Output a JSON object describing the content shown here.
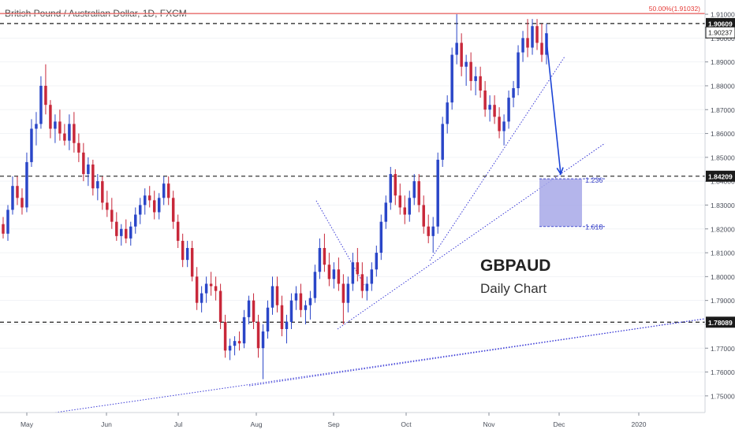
{
  "header": {
    "title": "British Pound / Australian Dollar, 1D, FXCM"
  },
  "annotations": {
    "title": "GBPAUD",
    "subtitle": "Daily Chart",
    "fib_top_label": "50.00%(1.91032)",
    "fib_1236_label": "1.236",
    "fib_1618_label": "1.618"
  },
  "colors": {
    "up": "#2a46c8",
    "down": "#c8283a",
    "trendline": "#3b3bd6",
    "arrow": "#1b43d6",
    "fib_line": "#e53935",
    "target_box": "#a7a8e8"
  },
  "chart_data": {
    "type": "candlestick",
    "title": "British Pound / Australian Dollar, 1D, FXCM",
    "instrument": "GBPAUD",
    "timeframe": "Daily",
    "ylim": [
      1.745,
      1.912
    ],
    "y_ticks": [
      1.75,
      1.76,
      1.77,
      1.78,
      1.79,
      1.8,
      1.81,
      1.82,
      1.83,
      1.84,
      1.85,
      1.86,
      1.87,
      1.88,
      1.89,
      1.9,
      1.91
    ],
    "y_tick_labels": [
      "1.75000",
      "1.76000",
      "1.77000",
      "1.78000",
      "1.79000",
      "1.80000",
      "1.81000",
      "1.82000",
      "1.83000",
      "1.84000",
      "1.85000",
      "1.86000",
      "1.87000",
      "1.88000",
      "1.89000",
      "1.90000",
      "1.91000"
    ],
    "x_tick_labels": [
      "May",
      "Jun",
      "Jul",
      "Aug",
      "Sep",
      "Oct",
      "Nov",
      "Dec",
      "2020"
    ],
    "horizontal_levels": [
      {
        "value": 1.90609,
        "label": "1.90609",
        "style": "dashed"
      },
      {
        "value": 1.90237,
        "label": "1.90237",
        "style": "current"
      },
      {
        "value": 1.84209,
        "label": "1.84209",
        "style": "dashed"
      },
      {
        "value": 1.78089,
        "label": "1.78089",
        "style": "dashed"
      }
    ],
    "fib_level": {
      "value": 1.91032,
      "label": "50.00%(1.91032)"
    },
    "target_zone": {
      "from": 1.841,
      "to": 1.821,
      "labels": [
        "1.236",
        "1.618"
      ]
    },
    "ohlc": [
      [
        1.822,
        1.825,
        1.816,
        1.818
      ],
      [
        1.818,
        1.83,
        1.815,
        1.828
      ],
      [
        1.828,
        1.842,
        1.826,
        1.838
      ],
      [
        1.838,
        1.842,
        1.83,
        1.833
      ],
      [
        1.833,
        1.837,
        1.826,
        1.829
      ],
      [
        1.829,
        1.852,
        1.827,
        1.848
      ],
      [
        1.848,
        1.866,
        1.846,
        1.862
      ],
      [
        1.862,
        1.869,
        1.855,
        1.864
      ],
      [
        1.864,
        1.884,
        1.862,
        1.88
      ],
      [
        1.88,
        1.889,
        1.868,
        1.872
      ],
      [
        1.872,
        1.874,
        1.858,
        1.862
      ],
      [
        1.862,
        1.868,
        1.856,
        1.865
      ],
      [
        1.865,
        1.87,
        1.857,
        1.86
      ],
      [
        1.86,
        1.864,
        1.855,
        1.857
      ],
      [
        1.857,
        1.868,
        1.853,
        1.864
      ],
      [
        1.864,
        1.869,
        1.852,
        1.856
      ],
      [
        1.856,
        1.86,
        1.848,
        1.852
      ],
      [
        1.852,
        1.856,
        1.84,
        1.843
      ],
      [
        1.843,
        1.85,
        1.838,
        1.847
      ],
      [
        1.847,
        1.849,
        1.834,
        1.837
      ],
      [
        1.837,
        1.843,
        1.832,
        1.84
      ],
      [
        1.84,
        1.842,
        1.828,
        1.831
      ],
      [
        1.831,
        1.836,
        1.825,
        1.828
      ],
      [
        1.828,
        1.833,
        1.82,
        1.823
      ],
      [
        1.823,
        1.827,
        1.815,
        1.817
      ],
      [
        1.817,
        1.822,
        1.813,
        1.82
      ],
      [
        1.82,
        1.824,
        1.814,
        1.816
      ],
      [
        1.816,
        1.823,
        1.813,
        1.821
      ],
      [
        1.821,
        1.829,
        1.818,
        1.826
      ],
      [
        1.826,
        1.833,
        1.822,
        1.83
      ],
      [
        1.83,
        1.837,
        1.826,
        1.834
      ],
      [
        1.834,
        1.838,
        1.829,
        1.832
      ],
      [
        1.832,
        1.836,
        1.824,
        1.827
      ],
      [
        1.827,
        1.835,
        1.824,
        1.833
      ],
      [
        1.833,
        1.842,
        1.83,
        1.839
      ],
      [
        1.839,
        1.842,
        1.83,
        1.833
      ],
      [
        1.833,
        1.836,
        1.82,
        1.823
      ],
      [
        1.823,
        1.826,
        1.812,
        1.815
      ],
      [
        1.815,
        1.818,
        1.804,
        1.807
      ],
      [
        1.807,
        1.815,
        1.804,
        1.812
      ],
      [
        1.812,
        1.815,
        1.798,
        1.8
      ],
      [
        1.8,
        1.804,
        1.786,
        1.789
      ],
      [
        1.789,
        1.796,
        1.785,
        1.793
      ],
      [
        1.793,
        1.8,
        1.789,
        1.797
      ],
      [
        1.797,
        1.802,
        1.792,
        1.796
      ],
      [
        1.796,
        1.8,
        1.79,
        1.794
      ],
      [
        1.794,
        1.797,
        1.778,
        1.781
      ],
      [
        1.781,
        1.784,
        1.766,
        1.769
      ],
      [
        1.769,
        1.774,
        1.765,
        1.771
      ],
      [
        1.771,
        1.775,
        1.767,
        1.773
      ],
      [
        1.773,
        1.777,
        1.769,
        1.772
      ],
      [
        1.772,
        1.786,
        1.77,
        1.783
      ],
      [
        1.783,
        1.792,
        1.78,
        1.79
      ],
      [
        1.79,
        1.793,
        1.778,
        1.781
      ],
      [
        1.781,
        1.784,
        1.766,
        1.77
      ],
      [
        1.77,
        1.78,
        1.757,
        1.777
      ],
      [
        1.777,
        1.79,
        1.774,
        1.787
      ],
      [
        1.787,
        1.8,
        1.784,
        1.796
      ],
      [
        1.796,
        1.8,
        1.785,
        1.788
      ],
      [
        1.788,
        1.792,
        1.775,
        1.778
      ],
      [
        1.778,
        1.784,
        1.772,
        1.781
      ],
      [
        1.781,
        1.793,
        1.778,
        1.79
      ],
      [
        1.79,
        1.796,
        1.786,
        1.793
      ],
      [
        1.793,
        1.797,
        1.783,
        1.786
      ],
      [
        1.786,
        1.79,
        1.78,
        1.788
      ],
      [
        1.788,
        1.794,
        1.782,
        1.791
      ],
      [
        1.791,
        1.805,
        1.789,
        1.802
      ],
      [
        1.802,
        1.816,
        1.799,
        1.812
      ],
      [
        1.812,
        1.818,
        1.802,
        1.805
      ],
      [
        1.805,
        1.81,
        1.796,
        1.799
      ],
      [
        1.799,
        1.806,
        1.795,
        1.803
      ],
      [
        1.803,
        1.808,
        1.794,
        1.797
      ],
      [
        1.797,
        1.801,
        1.78,
        1.789
      ],
      [
        1.789,
        1.8,
        1.785,
        1.797
      ],
      [
        1.797,
        1.81,
        1.794,
        1.806
      ],
      [
        1.806,
        1.812,
        1.798,
        1.801
      ],
      [
        1.801,
        1.806,
        1.791,
        1.794
      ],
      [
        1.794,
        1.8,
        1.79,
        1.797
      ],
      [
        1.797,
        1.806,
        1.794,
        1.803
      ],
      [
        1.803,
        1.813,
        1.8,
        1.81
      ],
      [
        1.81,
        1.826,
        1.807,
        1.823
      ],
      [
        1.823,
        1.834,
        1.82,
        1.831
      ],
      [
        1.831,
        1.846,
        1.828,
        1.843
      ],
      [
        1.843,
        1.845,
        1.83,
        1.834
      ],
      [
        1.834,
        1.839,
        1.826,
        1.829
      ],
      [
        1.829,
        1.834,
        1.822,
        1.826
      ],
      [
        1.826,
        1.836,
        1.823,
        1.833
      ],
      [
        1.833,
        1.843,
        1.83,
        1.84
      ],
      [
        1.84,
        1.843,
        1.827,
        1.83
      ],
      [
        1.83,
        1.834,
        1.818,
        1.821
      ],
      [
        1.821,
        1.826,
        1.814,
        1.817
      ],
      [
        1.817,
        1.825,
        1.81,
        1.821
      ],
      [
        1.821,
        1.852,
        1.818,
        1.849
      ],
      [
        1.849,
        1.867,
        1.846,
        1.864
      ],
      [
        1.864,
        1.876,
        1.86,
        1.873
      ],
      [
        1.873,
        1.896,
        1.87,
        1.893
      ],
      [
        1.893,
        1.91,
        1.889,
        1.898
      ],
      [
        1.898,
        1.902,
        1.884,
        1.888
      ],
      [
        1.888,
        1.893,
        1.88,
        1.89
      ],
      [
        1.89,
        1.894,
        1.878,
        1.882
      ],
      [
        1.882,
        1.888,
        1.876,
        1.884
      ],
      [
        1.884,
        1.888,
        1.875,
        1.878
      ],
      [
        1.878,
        1.882,
        1.867,
        1.87
      ],
      [
        1.87,
        1.876,
        1.865,
        1.872
      ],
      [
        1.872,
        1.876,
        1.864,
        1.867
      ],
      [
        1.867,
        1.871,
        1.858,
        1.861
      ],
      [
        1.861,
        1.868,
        1.855,
        1.865
      ],
      [
        1.865,
        1.878,
        1.862,
        1.875
      ],
      [
        1.875,
        1.882,
        1.871,
        1.879
      ],
      [
        1.879,
        1.897,
        1.876,
        1.894
      ],
      [
        1.894,
        1.903,
        1.89,
        1.9
      ],
      [
        1.9,
        1.908,
        1.892,
        1.896
      ],
      [
        1.896,
        1.908,
        1.893,
        1.905
      ],
      [
        1.905,
        1.908,
        1.895,
        1.898
      ],
      [
        1.898,
        1.906,
        1.89,
        1.893
      ],
      [
        1.893,
        1.906,
        1.889,
        1.902
      ]
    ],
    "projection_arrow": {
      "from_value": 1.902,
      "to_value": 1.842
    }
  }
}
